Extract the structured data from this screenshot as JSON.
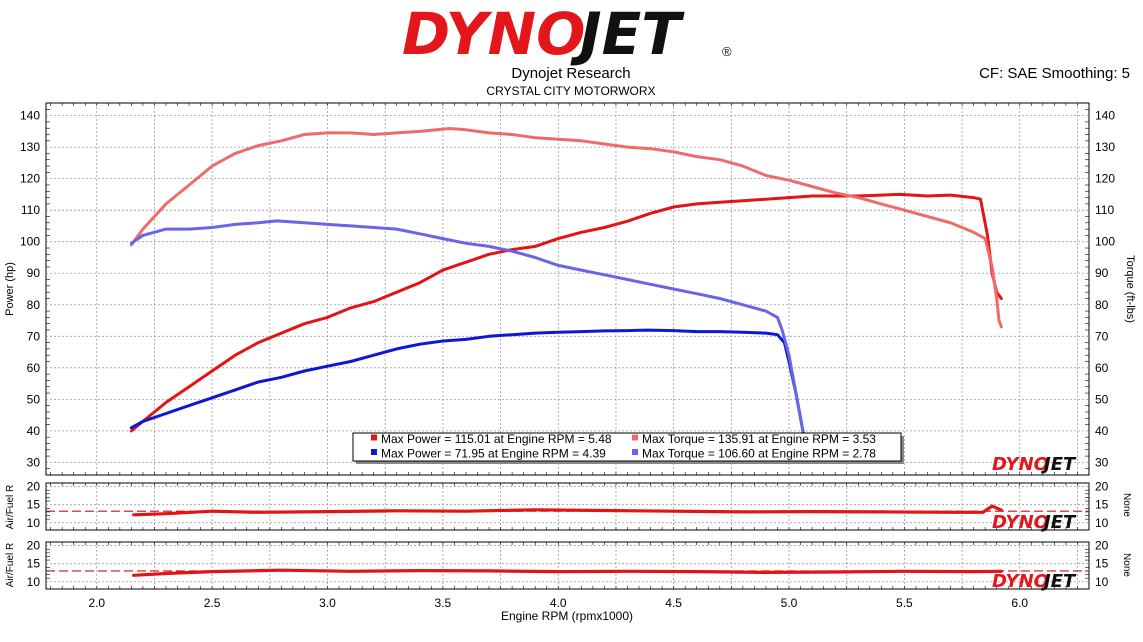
{
  "header": {
    "logo_a": "DYNO",
    "logo_b": "JET",
    "registered": "®",
    "title": "Dynojet Research",
    "subtitle": "CRYSTAL CITY MOTORWORX",
    "cf_label": "CF: SAE Smoothing: 5",
    "watermark_a": "DYNO",
    "watermark_b": "JET"
  },
  "colors": {
    "run1": "#e31414",
    "run1_torque": "#ef6b6b",
    "run2": "#0b18d6",
    "run2_torque": "#6a64e8",
    "afr_ref": "#c61414",
    "logo_red": "#e3161b",
    "logo_black": "#111111"
  },
  "chart_data": [
    {
      "type": "line",
      "xlabel": "Engine RPM (rpmx1000)",
      "ylabel": "Power (hp)",
      "y2label": "Torque (ft-lbs)",
      "xlim": [
        1.78,
        6.3
      ],
      "ylim": [
        26,
        144
      ],
      "y2lim": [
        26,
        144
      ],
      "x_ticks": [
        "2.0",
        "2.5",
        "3.0",
        "3.5",
        "4.0",
        "4.5",
        "5.0",
        "5.5",
        "6.0"
      ],
      "y_ticks": [
        30,
        40,
        50,
        60,
        70,
        80,
        90,
        100,
        110,
        120,
        130,
        140
      ],
      "grid": true,
      "legend": [
        {
          "swatch": "run1",
          "text": "Max Power = 115.01 at Engine RPM = 5.48"
        },
        {
          "swatch": "run1_torque",
          "text": "Max Torque = 135.91 at Engine RPM = 3.53"
        },
        {
          "swatch": "run2",
          "text": "Max Power = 71.95 at Engine RPM = 4.39"
        },
        {
          "swatch": "run2_torque",
          "text": "Max Torque = 106.60 at Engine RPM = 2.78"
        }
      ],
      "series": [
        {
          "color_key": "run1",
          "axis": "left",
          "points": [
            [
              2.15,
              40
            ],
            [
              2.2,
              43
            ],
            [
              2.3,
              49
            ],
            [
              2.4,
              54
            ],
            [
              2.5,
              59
            ],
            [
              2.6,
              64
            ],
            [
              2.7,
              68
            ],
            [
              2.8,
              71
            ],
            [
              2.9,
              74
            ],
            [
              3.0,
              76
            ],
            [
              3.1,
              79
            ],
            [
              3.2,
              81
            ],
            [
              3.3,
              84
            ],
            [
              3.4,
              87
            ],
            [
              3.5,
              91
            ],
            [
              3.6,
              93.5
            ],
            [
              3.7,
              96
            ],
            [
              3.8,
              97.5
            ],
            [
              3.9,
              98.5
            ],
            [
              4.0,
              101
            ],
            [
              4.1,
              103
            ],
            [
              4.2,
              104.5
            ],
            [
              4.3,
              106.5
            ],
            [
              4.4,
              109
            ],
            [
              4.5,
              111
            ],
            [
              4.6,
              112
            ],
            [
              4.7,
              112.5
            ],
            [
              4.8,
              113
            ],
            [
              4.9,
              113.5
            ],
            [
              5.0,
              114
            ],
            [
              5.1,
              114.5
            ],
            [
              5.2,
              114.5
            ],
            [
              5.3,
              114.5
            ],
            [
              5.4,
              114.8
            ],
            [
              5.48,
              115.01
            ],
            [
              5.6,
              114.5
            ],
            [
              5.7,
              114.8
            ],
            [
              5.8,
              114
            ],
            [
              5.83,
              113.5
            ],
            [
              5.86,
              102
            ],
            [
              5.88,
              90
            ],
            [
              5.9,
              84
            ],
            [
              5.92,
              82
            ]
          ]
        },
        {
          "color_key": "run1_torque",
          "axis": "right",
          "points": [
            [
              2.15,
              99
            ],
            [
              2.2,
              104
            ],
            [
              2.3,
              112
            ],
            [
              2.4,
              118
            ],
            [
              2.5,
              124
            ],
            [
              2.6,
              128
            ],
            [
              2.7,
              130.5
            ],
            [
              2.8,
              132
            ],
            [
              2.9,
              134
            ],
            [
              3.0,
              134.5
            ],
            [
              3.1,
              134.5
            ],
            [
              3.2,
              134
            ],
            [
              3.3,
              134.5
            ],
            [
              3.4,
              135
            ],
            [
              3.53,
              135.91
            ],
            [
              3.6,
              135.5
            ],
            [
              3.7,
              134.5
            ],
            [
              3.8,
              134
            ],
            [
              3.9,
              133
            ],
            [
              4.0,
              132.5
            ],
            [
              4.1,
              132
            ],
            [
              4.2,
              131
            ],
            [
              4.3,
              130
            ],
            [
              4.4,
              129.5
            ],
            [
              4.5,
              128.5
            ],
            [
              4.6,
              127
            ],
            [
              4.7,
              126
            ],
            [
              4.8,
              124
            ],
            [
              4.9,
              121
            ],
            [
              5.0,
              119.5
            ],
            [
              5.1,
              117.5
            ],
            [
              5.2,
              115.5
            ],
            [
              5.3,
              114
            ],
            [
              5.4,
              112
            ],
            [
              5.5,
              110
            ],
            [
              5.6,
              108
            ],
            [
              5.7,
              106
            ],
            [
              5.8,
              103
            ],
            [
              5.85,
              101
            ],
            [
              5.88,
              92
            ],
            [
              5.9,
              82
            ],
            [
              5.91,
              75
            ],
            [
              5.92,
              73
            ]
          ]
        },
        {
          "color_key": "run2",
          "axis": "left",
          "points": [
            [
              2.15,
              41
            ],
            [
              2.2,
              43
            ],
            [
              2.3,
              45.5
            ],
            [
              2.4,
              48
            ],
            [
              2.5,
              50.5
            ],
            [
              2.6,
              53
            ],
            [
              2.7,
              55.5
            ],
            [
              2.8,
              57
            ],
            [
              2.9,
              59
            ],
            [
              3.0,
              60.5
            ],
            [
              3.1,
              62
            ],
            [
              3.2,
              64
            ],
            [
              3.3,
              66
            ],
            [
              3.4,
              67.5
            ],
            [
              3.5,
              68.5
            ],
            [
              3.6,
              69
            ],
            [
              3.7,
              70
            ],
            [
              3.8,
              70.5
            ],
            [
              3.9,
              71
            ],
            [
              4.0,
              71.3
            ],
            [
              4.1,
              71.5
            ],
            [
              4.2,
              71.7
            ],
            [
              4.3,
              71.8
            ],
            [
              4.39,
              71.95
            ],
            [
              4.5,
              71.8
            ],
            [
              4.6,
              71.5
            ],
            [
              4.7,
              71.5
            ],
            [
              4.8,
              71.3
            ],
            [
              4.9,
              71
            ],
            [
              4.95,
              70.5
            ],
            [
              4.98,
              68
            ],
            [
              5.0,
              62
            ],
            [
              5.03,
              52
            ],
            [
              5.06,
              40
            ],
            [
              5.07,
              36
            ]
          ]
        },
        {
          "color_key": "run2_torque",
          "axis": "right",
          "points": [
            [
              2.15,
              99.5
            ],
            [
              2.2,
              102
            ],
            [
              2.3,
              104
            ],
            [
              2.4,
              104
            ],
            [
              2.5,
              104.5
            ],
            [
              2.6,
              105.5
            ],
            [
              2.7,
              106
            ],
            [
              2.78,
              106.6
            ],
            [
              2.9,
              106
            ],
            [
              3.0,
              105.5
            ],
            [
              3.1,
              105
            ],
            [
              3.2,
              104.5
            ],
            [
              3.3,
              104
            ],
            [
              3.4,
              102.5
            ],
            [
              3.5,
              101
            ],
            [
              3.6,
              99.5
            ],
            [
              3.7,
              98.5
            ],
            [
              3.8,
              97
            ],
            [
              3.9,
              95
            ],
            [
              4.0,
              92.5
            ],
            [
              4.1,
              91
            ],
            [
              4.2,
              89.5
            ],
            [
              4.3,
              88
            ],
            [
              4.4,
              86.5
            ],
            [
              4.5,
              85
            ],
            [
              4.6,
              83.5
            ],
            [
              4.7,
              82
            ],
            [
              4.8,
              80
            ],
            [
              4.9,
              78
            ],
            [
              4.95,
              76
            ],
            [
              4.97,
              72
            ],
            [
              5.0,
              64
            ],
            [
              5.03,
              52
            ],
            [
              5.06,
              40
            ]
          ]
        }
      ]
    },
    {
      "type": "line",
      "ylabel": "Air/Fuel R",
      "y2label": "None",
      "xlim": [
        1.78,
        6.3
      ],
      "ylim": [
        8,
        21
      ],
      "y_ticks": [
        10,
        15,
        20
      ],
      "grid": true,
      "reference_line": 13.2,
      "series": [
        {
          "color_key": "run1",
          "axis": "left",
          "points": [
            [
              2.16,
              12.2
            ],
            [
              2.3,
              12.5
            ],
            [
              2.5,
              13.2
            ],
            [
              2.7,
              12.9
            ],
            [
              3.0,
              13.1
            ],
            [
              3.3,
              13.3
            ],
            [
              3.6,
              13.2
            ],
            [
              3.9,
              13.6
            ],
            [
              4.2,
              13.4
            ],
            [
              4.5,
              13.2
            ],
            [
              4.8,
              13.0
            ],
            [
              5.1,
              13.1
            ],
            [
              5.4,
              13.0
            ],
            [
              5.7,
              12.9
            ],
            [
              5.84,
              12.9
            ],
            [
              5.88,
              14.6
            ],
            [
              5.92,
              13.5
            ]
          ]
        }
      ]
    },
    {
      "type": "line",
      "ylabel": "Air/Fuel R",
      "y2label": "None",
      "xlim": [
        1.78,
        6.3
      ],
      "ylim": [
        8,
        21
      ],
      "y_ticks": [
        10,
        15,
        20
      ],
      "grid": true,
      "reference_line": 13.0,
      "series": [
        {
          "color_key": "run1",
          "axis": "left",
          "points": [
            [
              2.16,
              11.8
            ],
            [
              2.3,
              12.3
            ],
            [
              2.5,
              12.8
            ],
            [
              2.8,
              13.2
            ],
            [
              3.1,
              12.9
            ],
            [
              3.4,
              13.1
            ],
            [
              3.7,
              13.0
            ],
            [
              4.0,
              12.8
            ],
            [
              4.3,
              12.9
            ],
            [
              4.6,
              12.8
            ],
            [
              4.9,
              12.6
            ],
            [
              5.2,
              12.7
            ],
            [
              5.5,
              12.9
            ],
            [
              5.8,
              12.8
            ],
            [
              5.92,
              12.9
            ]
          ]
        }
      ]
    }
  ]
}
